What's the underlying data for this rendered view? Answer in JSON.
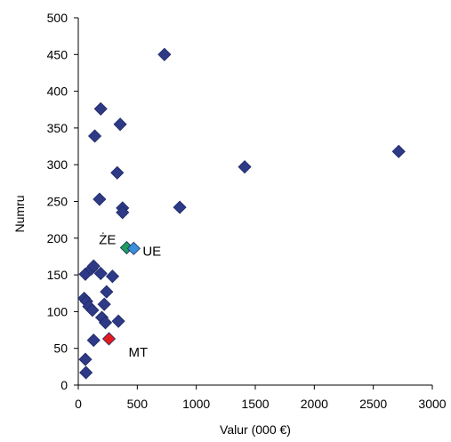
{
  "chart_data": {
    "type": "scatter",
    "xlabel": "Valur (000 €)",
    "ylabel": "Numru",
    "xlim": [
      0,
      3000
    ],
    "ylim": [
      0,
      500
    ],
    "x_ticks": [
      0,
      500,
      1000,
      1500,
      2000,
      2500,
      3000
    ],
    "y_ticks": [
      0,
      50,
      100,
      150,
      200,
      250,
      300,
      350,
      400,
      450,
      500
    ],
    "grid": false,
    "legend": "none",
    "colors": {
      "default": "#2e3a86",
      "ze": "#1e9e5a",
      "ue": "#3a8fd8",
      "mt": "#e41a1c",
      "axis": "#000000"
    },
    "points": [
      {
        "x": 730,
        "y": 450
      },
      {
        "x": 190,
        "y": 376
      },
      {
        "x": 355,
        "y": 355
      },
      {
        "x": 140,
        "y": 339
      },
      {
        "x": 2715,
        "y": 318
      },
      {
        "x": 1410,
        "y": 297
      },
      {
        "x": 330,
        "y": 289
      },
      {
        "x": 180,
        "y": 253
      },
      {
        "x": 375,
        "y": 241
      },
      {
        "x": 860,
        "y": 242
      },
      {
        "x": 375,
        "y": 235
      },
      {
        "x": 60,
        "y": 151
      },
      {
        "x": 110,
        "y": 158
      },
      {
        "x": 130,
        "y": 162
      },
      {
        "x": 190,
        "y": 152
      },
      {
        "x": 290,
        "y": 148
      },
      {
        "x": 240,
        "y": 127
      },
      {
        "x": 50,
        "y": 118
      },
      {
        "x": 70,
        "y": 114
      },
      {
        "x": 90,
        "y": 107
      },
      {
        "x": 120,
        "y": 102
      },
      {
        "x": 220,
        "y": 110
      },
      {
        "x": 200,
        "y": 92
      },
      {
        "x": 230,
        "y": 85
      },
      {
        "x": 340,
        "y": 87
      },
      {
        "x": 130,
        "y": 61
      },
      {
        "x": 60,
        "y": 35
      },
      {
        "x": 65,
        "y": 17
      }
    ],
    "highlighted": [
      {
        "label": "ŻE",
        "x": 410,
        "y": 187,
        "color_key": "ze",
        "label_side": "left"
      },
      {
        "label": "UE",
        "x": 470,
        "y": 186,
        "color_key": "ue",
        "label_side": "right"
      },
      {
        "label": "MT",
        "x": 260,
        "y": 63,
        "color_key": "mt",
        "label_side": "right-below"
      }
    ]
  }
}
